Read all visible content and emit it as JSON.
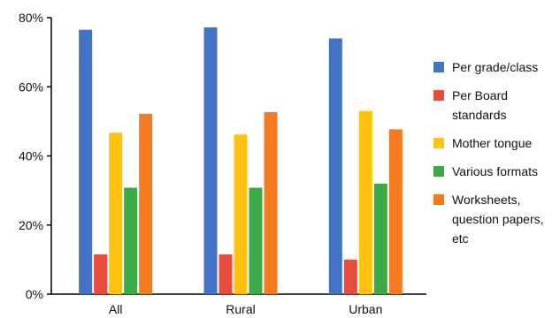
{
  "chart_data": {
    "type": "bar",
    "title": "",
    "xlabel": "",
    "ylabel": "",
    "categories": [
      "All",
      "Rural",
      "Urban"
    ],
    "ylim": [
      0,
      80
    ],
    "yticks": [
      0,
      20,
      40,
      60,
      80
    ],
    "ytick_suffix": "%",
    "grid": false,
    "legend_position": "right",
    "series": [
      {
        "name": "Per grade/class",
        "color": "#4472C4",
        "values": [
          76.5,
          77.2,
          74.0
        ]
      },
      {
        "name": "Per Board standards",
        "color": "#E84C3D",
        "values": [
          11.5,
          11.5,
          10.0
        ]
      },
      {
        "name": "Mother tongue",
        "color": "#FFC20E",
        "values": [
          46.7,
          46.2,
          53.0
        ]
      },
      {
        "name": "Various formats",
        "color": "#3DAA4A",
        "values": [
          30.8,
          30.8,
          32.0
        ]
      },
      {
        "name": "Worksheets, question papers, etc",
        "color": "#F47B20",
        "values": [
          52.2,
          52.7,
          47.7
        ]
      }
    ]
  }
}
